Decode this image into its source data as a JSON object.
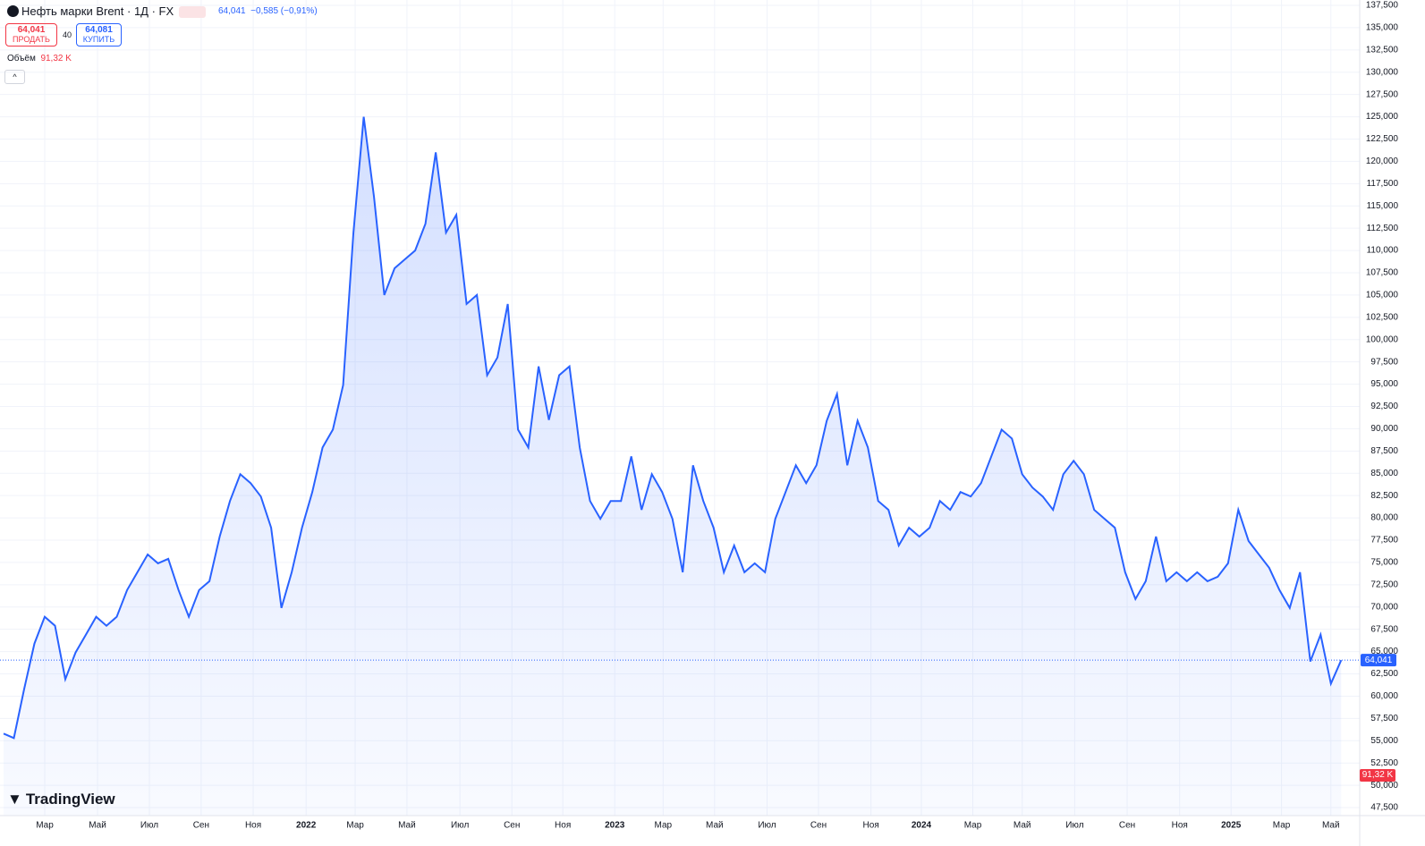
{
  "header": {
    "title": "Нефть марки Brent · 1Д · FX",
    "price": "64,041",
    "change": "−0,585 (−0,91%)",
    "sell_price": "64,041",
    "sell_label": "ПРОДАТЬ",
    "spread": "40",
    "buy_price": "64,081",
    "buy_label": "КУПИТЬ",
    "volume_label": "Объём",
    "volume_value": "91,32 K",
    "volume_badge": "91,32 K",
    "brand": "TradingView"
  },
  "chart_data": {
    "type": "area",
    "color": "#2962ff",
    "grid": true,
    "values": [
      55.8,
      55.3,
      60.8,
      65.9,
      68.9,
      67.9,
      61.9,
      64.9,
      66.9,
      68.9,
      67.9,
      68.9,
      71.9,
      73.9,
      75.9,
      74.9,
      75.4,
      71.9,
      68.9,
      71.9,
      72.9,
      77.9,
      81.9,
      84.9,
      83.9,
      82.4,
      78.9,
      69.9,
      73.9,
      78.9,
      82.9,
      87.9,
      89.9,
      94.9,
      112.0,
      125.0,
      116.0,
      105.0,
      108.0,
      109.0,
      110.0,
      113.0,
      121.0,
      112.0,
      114.0,
      104.0,
      105.0,
      96.0,
      98.0,
      104.0,
      89.9,
      87.9,
      97.0,
      91.0,
      96.0,
      97.0,
      87.9,
      81.9,
      79.9,
      81.9,
      81.9,
      86.9,
      80.9,
      84.9,
      82.9,
      79.9,
      73.9,
      85.9,
      81.9,
      78.9,
      73.9,
      76.9,
      73.9,
      74.9,
      73.9,
      79.9,
      82.9,
      85.9,
      83.9,
      85.9,
      90.9,
      93.9,
      85.9,
      90.9,
      87.9,
      81.9,
      80.9,
      76.9,
      78.9,
      77.9,
      78.9,
      81.9,
      80.9,
      82.9,
      82.4,
      83.9,
      86.9,
      89.9,
      88.9,
      84.9,
      83.4,
      82.4,
      80.9,
      84.9,
      86.4,
      84.9,
      80.9,
      79.9,
      78.9,
      73.9,
      70.9,
      72.9,
      77.9,
      72.9,
      73.9,
      72.9,
      73.9,
      72.9,
      73.4,
      74.9,
      80.9,
      77.4,
      75.9,
      74.4,
      71.9,
      69.9,
      73.9,
      63.9,
      66.9,
      61.4,
      64.041
    ],
    "last_price": {
      "value": 64.041,
      "label": "64,041"
    },
    "xlim": [
      -0.35,
      131.8
    ],
    "xticks": [
      {
        "value": 4,
        "label": "Мар"
      },
      {
        "value": 9.13,
        "label": "Май"
      },
      {
        "value": 14.17,
        "label": "Июл"
      },
      {
        "value": 19.2,
        "label": "Сен"
      },
      {
        "value": 24.26,
        "label": "Ноя"
      },
      {
        "value": 29.4,
        "label": "2022"
      },
      {
        "value": 34.17,
        "label": "Мар"
      },
      {
        "value": 39.2,
        "label": "Май"
      },
      {
        "value": 44.35,
        "label": "Июл"
      },
      {
        "value": 49.4,
        "label": "Сен"
      },
      {
        "value": 54.35,
        "label": "Ноя"
      },
      {
        "value": 59.4,
        "label": "2023"
      },
      {
        "value": 64.1,
        "label": "Мар"
      },
      {
        "value": 69.1,
        "label": "Май"
      },
      {
        "value": 74.2,
        "label": "Июл"
      },
      {
        "value": 79.2,
        "label": "Сен"
      },
      {
        "value": 84.3,
        "label": "Ноя"
      },
      {
        "value": 89.2,
        "label": "2024"
      },
      {
        "value": 94.2,
        "label": "Мар"
      },
      {
        "value": 99.0,
        "label": "Май"
      },
      {
        "value": 104.1,
        "label": "Июл"
      },
      {
        "value": 109.2,
        "label": "Сен"
      },
      {
        "value": 114.3,
        "label": "Ноя"
      },
      {
        "value": 119.3,
        "label": "2025"
      },
      {
        "value": 124.2,
        "label": "Мар"
      },
      {
        "value": 129.0,
        "label": "Май"
      }
    ],
    "ylim": [
      46.6,
      138.1
    ],
    "yticks": [
      {
        "value": 47.5,
        "label": "47,500"
      },
      {
        "value": 50,
        "label": "50,000"
      },
      {
        "value": 52.5,
        "label": "52,500"
      },
      {
        "value": 55,
        "label": "55,000"
      },
      {
        "value": 57.5,
        "label": "57,500"
      },
      {
        "value": 60,
        "label": "60,000"
      },
      {
        "value": 62.5,
        "label": "62,500"
      },
      {
        "value": 65,
        "label": "65,000"
      },
      {
        "value": 67.5,
        "label": "67,500"
      },
      {
        "value": 70,
        "label": "70,000"
      },
      {
        "value": 72.5,
        "label": "72,500"
      },
      {
        "value": 75,
        "label": "75,000"
      },
      {
        "value": 77.5,
        "label": "77,500"
      },
      {
        "value": 80,
        "label": "80,000"
      },
      {
        "value": 82.5,
        "label": "82,500"
      },
      {
        "value": 85,
        "label": "85,000"
      },
      {
        "value": 87.5,
        "label": "87,500"
      },
      {
        "value": 90,
        "label": "90,000"
      },
      {
        "value": 92.5,
        "label": "92,500"
      },
      {
        "value": 95,
        "label": "95,000"
      },
      {
        "value": 97.5,
        "label": "97,500"
      },
      {
        "value": 100,
        "label": "100,000"
      },
      {
        "value": 102.5,
        "label": "102,500"
      },
      {
        "value": 105,
        "label": "105,000"
      },
      {
        "value": 107.5,
        "label": "107,500"
      },
      {
        "value": 110,
        "label": "110,000"
      },
      {
        "value": 112.5,
        "label": "112,500"
      },
      {
        "value": 115,
        "label": "115,000"
      },
      {
        "value": 117.5,
        "label": "117,500"
      },
      {
        "value": 120,
        "label": "120,000"
      },
      {
        "value": 122.5,
        "label": "122,500"
      },
      {
        "value": 125,
        "label": "125,000"
      },
      {
        "value": 127.5,
        "label": "127,500"
      },
      {
        "value": 130,
        "label": "130,000"
      },
      {
        "value": 132.5,
        "label": "132,500"
      },
      {
        "value": 135,
        "label": "135,000"
      },
      {
        "value": 137.5,
        "label": "137,500"
      }
    ]
  }
}
